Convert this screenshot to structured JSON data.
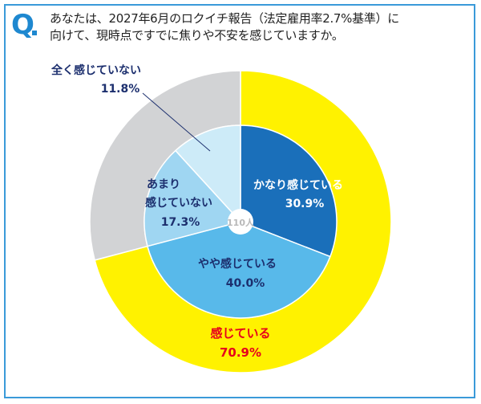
{
  "question": {
    "mark": "Q",
    "line1": "あなたは、2027年6月のロクイチ報告（法定雇用率2.7%基準）に",
    "line2": "向けて、現時点ですでに焦りや不安を感じていますか。"
  },
  "colors": {
    "frame": "#3a9ad9",
    "question_mark": "#1e88d0",
    "outer_yellow": "#fff200",
    "outer_gray": "#d2d3d5",
    "inner_dark": "#1a6fba",
    "inner_mid": "#58b9ea",
    "inner_light": "#9fd6f2",
    "inner_pale": "#cdebf8",
    "label_navy": "#1c2f6e",
    "label_red": "#e6001c"
  },
  "chart_data": {
    "type": "pie",
    "center_label": "110人",
    "outer_ring": [
      {
        "label": "感じている",
        "value": 70.9,
        "display": "70.9%"
      },
      {
        "label": "感じていない",
        "value": 29.1,
        "display": ""
      }
    ],
    "inner_ring": [
      {
        "label": "かなり感じている",
        "value": 30.9,
        "display": "30.9%"
      },
      {
        "label": "やや感じている",
        "value": 40.0,
        "display": "40.0%"
      },
      {
        "label": "あまり感じていない",
        "value": 17.3,
        "display": "17.3%"
      },
      {
        "label": "全く感じていない",
        "value": 11.8,
        "display": "11.8%"
      }
    ]
  },
  "labels": {
    "kanari_name": "かなり感じている",
    "kanari_value": "30.9%",
    "yaya_name": "やや感じている",
    "yaya_value": "40.0%",
    "amari_name1": "あまり",
    "amari_name2": "感じていない",
    "amari_value": "17.3%",
    "mattaku_name": "全く感じていない",
    "mattaku_value": "11.8%",
    "kanjiteiru_name": "感じている",
    "kanjiteiru_value": "70.9%"
  }
}
